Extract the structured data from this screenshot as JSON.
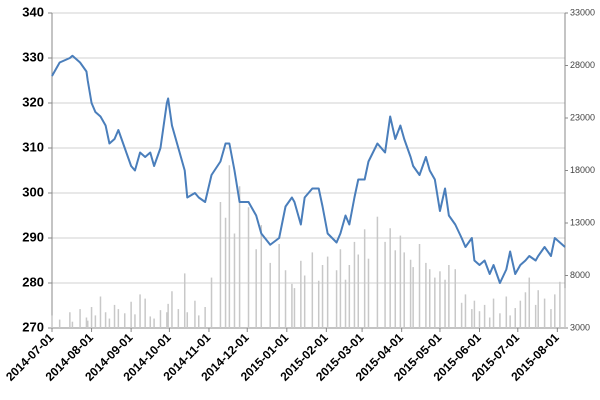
{
  "chart_data": {
    "type": "line",
    "x": [
      "2014-07-01",
      "2014-07-07",
      "2014-07-15",
      "2014-07-17",
      "2014-07-23",
      "2014-07-28",
      "2014-07-29",
      "2014-08-01",
      "2014-08-04",
      "2014-08-08",
      "2014-08-12",
      "2014-08-15",
      "2014-08-19",
      "2014-08-22",
      "2014-08-27",
      "2014-09-01",
      "2014-09-04",
      "2014-09-08",
      "2014-09-12",
      "2014-09-16",
      "2014-09-19",
      "2014-09-24",
      "2014-09-29",
      "2014-09-30",
      "2014-10-03",
      "2014-10-08",
      "2014-10-13",
      "2014-10-15",
      "2014-10-21",
      "2014-10-24",
      "2014-10-29",
      "2014-11-03",
      "2014-11-10",
      "2014-11-14",
      "2014-11-17",
      "2014-11-21",
      "2014-11-25",
      "2014-12-02",
      "2014-12-08",
      "2014-12-12",
      "2014-12-19",
      "2014-12-26",
      "2014-12-31",
      "2015-01-05",
      "2015-01-07",
      "2015-01-12",
      "2015-01-15",
      "2015-01-21",
      "2015-01-26",
      "2015-01-29",
      "2015-02-02",
      "2015-02-09",
      "2015-02-12",
      "2015-02-16",
      "2015-02-19",
      "2015-02-23",
      "2015-02-26",
      "2015-03-03",
      "2015-03-06",
      "2015-03-13",
      "2015-03-19",
      "2015-03-23",
      "2015-03-27",
      "2015-03-31",
      "2015-04-03",
      "2015-04-08",
      "2015-04-10",
      "2015-04-15",
      "2015-04-20",
      "2015-04-23",
      "2015-04-27",
      "2015-05-01",
      "2015-05-05",
      "2015-05-08",
      "2015-05-13",
      "2015-05-18",
      "2015-05-21",
      "2015-05-26",
      "2015-05-28",
      "2015-06-01",
      "2015-06-05",
      "2015-06-09",
      "2015-06-12",
      "2015-06-17",
      "2015-06-22",
      "2015-06-25",
      "2015-06-29",
      "2015-07-03",
      "2015-07-07",
      "2015-07-10",
      "2015-07-15",
      "2015-07-17",
      "2015-07-22",
      "2015-07-27",
      "2015-07-30",
      "2015-08-03",
      "2015-08-07"
    ],
    "series": [
      {
        "color": "#c8c8c8",
        "type": "bar",
        "axis": "y2",
        "values": [
          4200,
          3800,
          4500,
          3600,
          4800,
          4000,
          3700,
          5000,
          4200,
          6000,
          4500,
          3900,
          5200,
          4800,
          4400,
          5500,
          4300,
          6200,
          5800,
          4100,
          3900,
          4700,
          4500,
          5300,
          6500,
          4800,
          8200,
          4500,
          5600,
          4200,
          5000,
          7800,
          15000,
          13500,
          18500,
          12000,
          16500,
          14500,
          10500,
          12800,
          9200,
          11000,
          8500,
          7200,
          6800,
          9400,
          8000,
          10200,
          7500,
          9000,
          9800,
          8500,
          10500,
          7600,
          9000,
          11200,
          10000,
          12400,
          9600,
          13600,
          11200,
          12500,
          10400,
          11800,
          10200,
          9500,
          8800,
          11000,
          9200,
          8600,
          7800,
          8400,
          7600,
          9000,
          8600,
          5400,
          6200,
          4800,
          5600,
          4600,
          5200,
          4000,
          5800,
          4400,
          6000,
          4200,
          4900,
          5600,
          6400,
          7800,
          5200,
          6600,
          5800,
          4800,
          6200,
          7400,
          6800
        ]
      },
      {
        "color": "#4a7ebb",
        "type": "line",
        "values": [
          326,
          329,
          330,
          330.5,
          329,
          327,
          325,
          320,
          318,
          317,
          315,
          311,
          312,
          314,
          310,
          306,
          305,
          309,
          308,
          309,
          306,
          310,
          320,
          321,
          315,
          310,
          305,
          299,
          300,
          299,
          298,
          304,
          307,
          311,
          311,
          305,
          298,
          298,
          295,
          291,
          288.5,
          290,
          297,
          299,
          298,
          293,
          299,
          301,
          301,
          297,
          291,
          289,
          291,
          295,
          293,
          299,
          303,
          303,
          307,
          311,
          309,
          317,
          312,
          315,
          312,
          308,
          306,
          304,
          308,
          305,
          303,
          296,
          301,
          295,
          293,
          290,
          288,
          290,
          285,
          284,
          285,
          282,
          284,
          280,
          283,
          287,
          282,
          284,
          285,
          286,
          285,
          286,
          288,
          286,
          290,
          289,
          288
        ]
      }
    ],
    "xlim": [
      "2014-07-01",
      "2015-08-07"
    ],
    "xticks": [
      "2014-07-01",
      "2014-08-01",
      "2014-09-01",
      "2014-10-01",
      "2014-11-01",
      "2014-12-01",
      "2015-01-01",
      "2015-02-01",
      "2015-03-01",
      "2015-04-01",
      "2015-05-01",
      "2015-06-01",
      "2015-07-01",
      "2015-08-01"
    ],
    "ylim": [
      270,
      340
    ],
    "yticks": [
      270,
      280,
      290,
      300,
      310,
      320,
      330,
      340
    ],
    "y2lim": [
      3000,
      33000
    ],
    "y2ticks": [
      3000,
      8000,
      13000,
      18000,
      23000,
      28000,
      33000
    ],
    "grid": true
  }
}
